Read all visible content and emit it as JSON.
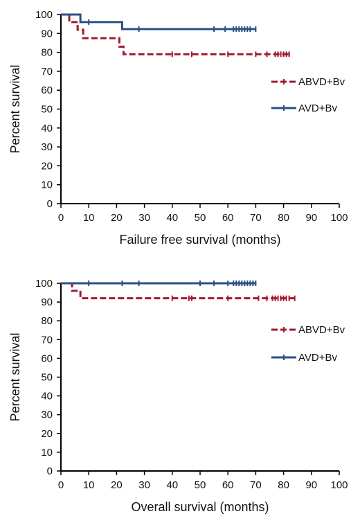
{
  "chart_data": [
    {
      "type": "line",
      "step": true,
      "title": "",
      "xlabel": "Failure free survival (months)",
      "ylabel": "Percent survival",
      "xlim": [
        0,
        100
      ],
      "ylim": [
        0,
        100
      ],
      "xticks": [
        0,
        10,
        20,
        30,
        40,
        50,
        60,
        70,
        80,
        90,
        100
      ],
      "yticks": [
        0,
        10,
        20,
        30,
        40,
        50,
        60,
        70,
        80,
        90,
        100
      ],
      "legend_position": "right",
      "series": [
        {
          "name": "ABVD+Bv",
          "color": "#a3182f",
          "dash": true,
          "steps": [
            [
              0,
              100
            ],
            [
              3,
              96
            ],
            [
              6,
              92
            ],
            [
              8,
              87.5
            ],
            [
              21,
              83
            ],
            [
              22.5,
              79
            ],
            [
              82,
              79
            ]
          ],
          "censors": [
            40,
            47,
            60,
            70,
            74,
            77,
            78,
            79,
            80,
            81,
            82
          ]
        },
        {
          "name": "AVD+Bv",
          "color": "#2b4e87",
          "dash": false,
          "steps": [
            [
              0,
              100
            ],
            [
              7,
              96
            ],
            [
              22,
              92.3
            ],
            [
              70,
              92.3
            ]
          ],
          "censors": [
            10,
            28,
            55,
            59,
            62,
            63,
            64,
            65,
            66,
            67,
            68,
            70
          ]
        }
      ]
    },
    {
      "type": "line",
      "step": true,
      "title": "",
      "xlabel": "Overall survival (months)",
      "ylabel": "Percent survival",
      "xlim": [
        0,
        100
      ],
      "ylim": [
        0,
        100
      ],
      "xticks": [
        0,
        10,
        20,
        30,
        40,
        50,
        60,
        70,
        80,
        90,
        100
      ],
      "yticks": [
        0,
        10,
        20,
        30,
        40,
        50,
        60,
        70,
        80,
        90,
        100
      ],
      "legend_position": "right",
      "series": [
        {
          "name": "ABVD+Bv",
          "color": "#a3182f",
          "dash": true,
          "steps": [
            [
              0,
              100
            ],
            [
              4,
              96
            ],
            [
              7,
              92
            ],
            [
              84,
              92
            ]
          ],
          "censors": [
            40,
            46,
            47,
            60,
            71,
            74,
            76,
            77,
            78,
            79,
            80,
            81,
            82,
            84
          ]
        },
        {
          "name": "AVD+Bv",
          "color": "#2b4e87",
          "dash": false,
          "steps": [
            [
              0,
              100
            ],
            [
              70,
              100
            ]
          ],
          "censors": [
            10,
            22,
            28,
            50,
            55,
            60,
            62,
            63,
            64,
            65,
            66,
            67,
            68,
            69,
            70
          ]
        }
      ]
    }
  ]
}
